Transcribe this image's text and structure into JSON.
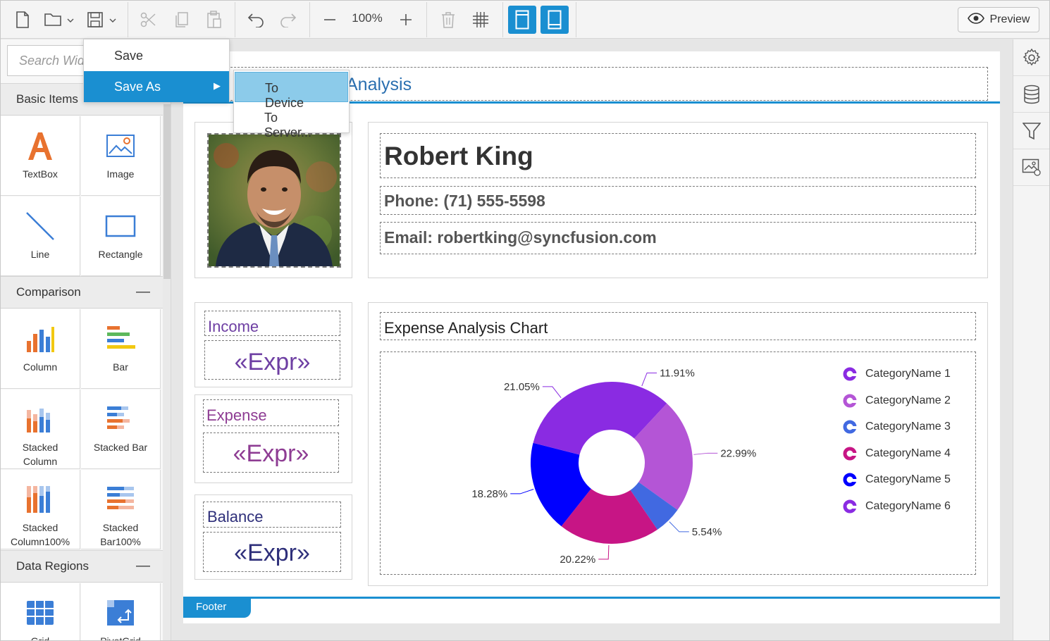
{
  "toolbar": {
    "zoom": "100%",
    "preview_label": "Preview"
  },
  "menu": {
    "save": "Save",
    "save_as": "Save As",
    "sub": {
      "to_device": "To Device",
      "to_server": "To Server..."
    }
  },
  "left_panel": {
    "search_placeholder": "Search Widgets",
    "sections": {
      "basic": "Basic Items",
      "comparison": "Comparison",
      "data_regions": "Data Regions"
    },
    "items": {
      "textbox": "TextBox",
      "image": "Image",
      "line": "Line",
      "rectangle": "Rectangle",
      "column": "Column",
      "bar": "Bar",
      "stacked_column_1": "Stacked",
      "stacked_column_2": "Column",
      "stacked_bar": "Stacked Bar",
      "stacked_col100_1": "Stacked",
      "stacked_col100_2": "Column100%",
      "stacked_bar100_1": "Stacked",
      "stacked_bar100_2": "Bar100%",
      "grid": "Grid",
      "pivotgrid": "PivotGrid"
    }
  },
  "report": {
    "header_title": "Analysis",
    "name": "Robert King",
    "phone": "Phone: (71) 555-5598",
    "email": "Email: robertking@syncfusion.com",
    "income_label": "Income",
    "expense_label": "Expense",
    "balance_label": "Balance",
    "expr": "«Expr»",
    "footer": "Footer"
  },
  "colors": {
    "accent": "#1a8fd1",
    "income": "#6e3fa3",
    "expense": "#8e3c93",
    "balance": "#2e2f7a"
  },
  "chart_data": {
    "type": "pie",
    "title": "Expense Analysis Chart",
    "donut": true,
    "legend_position": "right",
    "series": [
      {
        "name": "CategoryName 1",
        "value": 11.91,
        "label": "11.91%",
        "color": "#8a2be2"
      },
      {
        "name": "CategoryName 2",
        "value": 22.99,
        "label": "22.99%",
        "color": "#b455d6"
      },
      {
        "name": "CategoryName 3",
        "value": 5.54,
        "label": "5.54%",
        "color": "#4169e1"
      },
      {
        "name": "CategoryName 4",
        "value": 20.22,
        "label": "20.22%",
        "color": "#c71585"
      },
      {
        "name": "CategoryName 5",
        "value": 18.28,
        "label": "18.28%",
        "color": "#0000ff"
      },
      {
        "name": "CategoryName 6",
        "value": 21.05,
        "label": "21.05%",
        "color": "#8a2be2"
      }
    ]
  }
}
